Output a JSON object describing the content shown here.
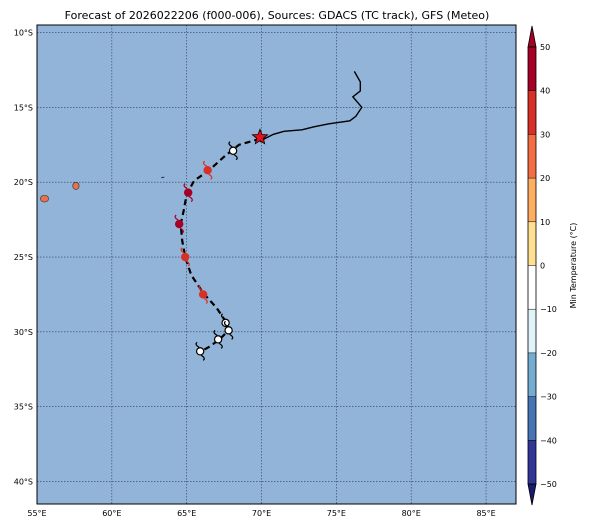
{
  "title": "Forecast of 2026022206 (f000-006), Sources: GDACS (TC track), GFS (Meteo)",
  "map": {
    "lon_range": [
      55,
      87
    ],
    "lat_range": [
      -41.5,
      -9.5
    ],
    "background_color": "#92b4d8",
    "land_color": "#e8704a",
    "x_ticks": [
      55,
      60,
      65,
      70,
      75,
      80,
      85
    ],
    "x_tick_labels": [
      "55°E",
      "60°E",
      "65°E",
      "70°E",
      "75°E",
      "80°E",
      "85°E"
    ],
    "y_ticks": [
      -10,
      -15,
      -20,
      -25,
      -30,
      -35,
      -40
    ],
    "y_tick_labels": [
      "10°S",
      "15°S",
      "20°S",
      "25°S",
      "30°S",
      "35°S",
      "40°S"
    ],
    "grid": true
  },
  "islands": [
    {
      "name": "Reunion",
      "lon": 55.5,
      "lat": -21.1
    },
    {
      "name": "Mauritius",
      "lon": 57.6,
      "lat": -20.25
    },
    {
      "name": "Rodrigues",
      "lon": 63.4,
      "lat": -19.7
    }
  ],
  "observed_track": [
    [
      76.2,
      -12.6
    ],
    [
      76.6,
      -13.3
    ],
    [
      76.6,
      -13.9
    ],
    [
      76.1,
      -14.3
    ],
    [
      76.7,
      -15.0
    ],
    [
      76.3,
      -15.6
    ],
    [
      75.9,
      -15.9
    ],
    [
      74.5,
      -16.1
    ],
    [
      73.5,
      -16.3
    ],
    [
      72.7,
      -16.5
    ],
    [
      71.5,
      -16.6
    ],
    [
      70.8,
      -16.8
    ],
    [
      70.2,
      -17.1
    ],
    [
      69.9,
      -17.3
    ]
  ],
  "current_position": {
    "lon": 69.9,
    "lat": -17.0
  },
  "forecast_track": [
    [
      69.9,
      -17.1
    ],
    [
      68.5,
      -17.5
    ],
    [
      67.5,
      -18.3
    ],
    [
      66.5,
      -19.2
    ],
    [
      65.5,
      -19.9
    ],
    [
      65.0,
      -20.8
    ],
    [
      64.8,
      -21.9
    ],
    [
      64.6,
      -22.8
    ],
    [
      64.7,
      -23.9
    ],
    [
      64.9,
      -25.0
    ],
    [
      65.3,
      -26.2
    ],
    [
      66.1,
      -27.4
    ],
    [
      67.0,
      -28.4
    ],
    [
      67.6,
      -29.3
    ],
    [
      67.8,
      -29.9
    ],
    [
      67.2,
      -30.5
    ],
    [
      66.5,
      -31.0
    ],
    [
      65.8,
      -31.4
    ]
  ],
  "forecast_points": [
    {
      "lon": 68.1,
      "lat": -17.9,
      "min_temp": -10
    },
    {
      "lon": 66.4,
      "lat": -19.2,
      "min_temp": 30
    },
    {
      "lon": 65.1,
      "lat": -20.7,
      "min_temp": 45
    },
    {
      "lon": 64.5,
      "lat": -22.8,
      "min_temp": 45
    },
    {
      "lon": 64.9,
      "lat": -25.0,
      "min_temp": 35
    },
    {
      "lon": 66.1,
      "lat": -27.5,
      "min_temp": 32
    },
    {
      "lon": 67.6,
      "lat": -29.4,
      "min_temp": -5
    },
    {
      "lon": 67.8,
      "lat": -29.9,
      "min_temp": -5
    },
    {
      "lon": 67.1,
      "lat": -30.5,
      "min_temp": -5
    },
    {
      "lon": 65.9,
      "lat": -31.3,
      "min_temp": -5
    }
  ],
  "colorbar": {
    "label": "Min Temperature (°C)",
    "min": -50,
    "max": 50,
    "ticks": [
      50,
      40,
      30,
      20,
      10,
      0,
      -10,
      -20,
      -30,
      -40,
      -50
    ],
    "tick_labels": [
      "50",
      "40",
      "30",
      "20",
      "10",
      "0",
      "−10",
      "−20",
      "−30",
      "−40",
      "−50"
    ],
    "bands": [
      {
        "from": 40,
        "to": 50,
        "color": "#a50026"
      },
      {
        "from": 30,
        "to": 40,
        "color": "#d73027"
      },
      {
        "from": 20,
        "to": 30,
        "color": "#f46d43"
      },
      {
        "from": 10,
        "to": 20,
        "color": "#fdae61"
      },
      {
        "from": 0,
        "to": 10,
        "color": "#fee090"
      },
      {
        "from": -10,
        "to": 0,
        "color": "#ffffff"
      },
      {
        "from": -20,
        "to": -10,
        "color": "#e0f3f8"
      },
      {
        "from": -30,
        "to": -20,
        "color": "#74add1"
      },
      {
        "from": -40,
        "to": -30,
        "color": "#4575b4"
      },
      {
        "from": -50,
        "to": -40,
        "color": "#313695"
      }
    ],
    "over_color": "#a50026",
    "under_color": "#1a1a6e"
  }
}
